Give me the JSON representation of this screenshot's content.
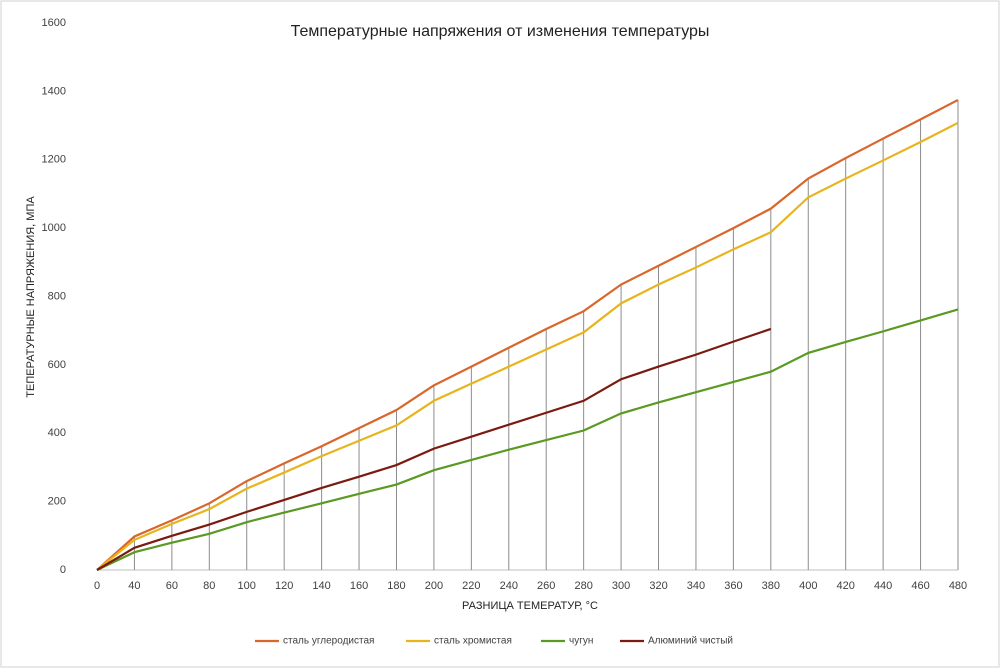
{
  "chart_data": {
    "type": "line",
    "title": "Температурные  напряжения  от изменения  температуры",
    "x_label": "РАЗНИЦА ТЕМЕРАТУР, °С",
    "y_label": "ТЕПЕРАТУРНЫЕ НАПРЯЖЕНИЯ, МПА",
    "categories": [
      "0",
      "40",
      "60",
      "80",
      "100",
      "120",
      "140",
      "160",
      "180",
      "200",
      "220",
      "240",
      "260",
      "280",
      "300",
      "320",
      "340",
      "360",
      "380",
      "400",
      "420",
      "440",
      "460",
      "480"
    ],
    "series": [
      {
        "name": "сталь углеродистая",
        "color": "#d9662a",
        "values": [
          0,
          98,
          145,
          195,
          260,
          312,
          362,
          415,
          468,
          540,
          595,
          650,
          705,
          757,
          835,
          890,
          945,
          1000,
          1057,
          1145,
          1205,
          1262,
          1318,
          1375
        ]
      },
      {
        "name": "сталь хромистая",
        "color": "#e8b41e",
        "values": [
          0,
          88,
          135,
          178,
          238,
          285,
          333,
          378,
          423,
          495,
          545,
          595,
          645,
          695,
          780,
          835,
          885,
          938,
          988,
          1090,
          1145,
          1198,
          1252,
          1308
        ]
      },
      {
        "name": "чугун",
        "color": "#5a9a22",
        "values": [
          0,
          52,
          80,
          106,
          140,
          168,
          195,
          223,
          250,
          292,
          322,
          352,
          380,
          408,
          458,
          490,
          520,
          550,
          580,
          635,
          667,
          698,
          730,
          762
        ]
      },
      {
        "name": "Алюминий чистый",
        "color": "#7a1a10",
        "values": [
          0,
          65,
          100,
          133,
          170,
          205,
          240,
          273,
          307,
          355,
          390,
          425,
          460,
          495,
          558,
          595,
          630,
          668,
          705,
          null,
          null,
          null,
          null,
          null
        ]
      }
    ],
    "ylim": [
      0,
      1600
    ],
    "yticks": [
      0,
      200,
      400,
      600,
      800,
      1000,
      1200,
      1400,
      1600
    ],
    "drop_lines": true,
    "legend": "bottom"
  }
}
